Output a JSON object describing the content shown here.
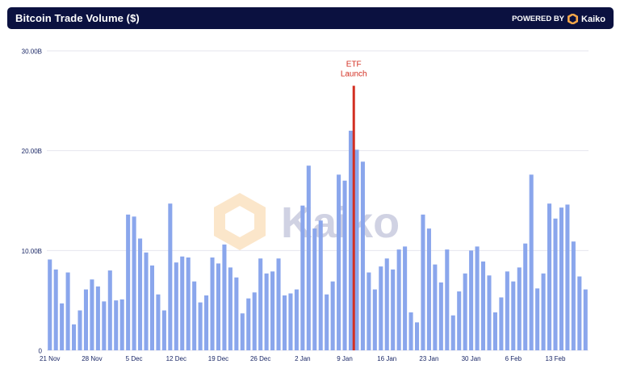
{
  "header": {
    "title": "Bitcoin Trade Volume ($)",
    "powered_by": "POWERED BY",
    "brand": "Kaiko"
  },
  "watermark": {
    "text": "Kaiko"
  },
  "colors": {
    "bar": "#8aa6ec",
    "event_line": "#d32f22",
    "header_bg": "#0b1140",
    "axis_text": "#1a2766",
    "grid": "#e6e6ee",
    "logo_orange": "#f4a64a"
  },
  "chart_data": {
    "type": "bar",
    "title": "Bitcoin Trade Volume ($)",
    "xlabel": "",
    "ylabel": "",
    "ylim": [
      0,
      30
    ],
    "y_ticks": [
      0,
      10,
      20,
      30
    ],
    "y_tick_labels": [
      "0",
      "10.00B",
      "20.00B",
      "30.00B"
    ],
    "grid": true,
    "unit": "B USD",
    "x_tick_labels": [
      "21 Nov",
      "28 Nov",
      "5 Dec",
      "12 Dec",
      "19 Dec",
      "26 Dec",
      "2 Jan",
      "9 Jan",
      "16 Jan",
      "23 Jan",
      "30 Jan",
      "6 Feb",
      "13 Feb"
    ],
    "x_tick_indices": [
      0,
      7,
      14,
      21,
      28,
      35,
      42,
      49,
      56,
      63,
      70,
      77,
      84
    ],
    "values": [
      9.1,
      8.1,
      4.7,
      7.8,
      2.6,
      4.0,
      6.1,
      7.1,
      6.4,
      4.9,
      8.0,
      5.0,
      5.1,
      13.6,
      13.4,
      11.2,
      9.8,
      8.5,
      5.6,
      4.0,
      14.7,
      8.8,
      9.4,
      9.3,
      6.9,
      4.8,
      5.5,
      9.3,
      8.7,
      10.6,
      8.3,
      7.3,
      3.7,
      5.2,
      5.8,
      9.2,
      7.7,
      7.9,
      9.2,
      5.5,
      5.7,
      6.1,
      14.5,
      18.5,
      12.2,
      13.0,
      5.6,
      6.9,
      17.6,
      17.0,
      22.0,
      20.1,
      18.9,
      7.8,
      6.1,
      8.4,
      9.2,
      8.1,
      10.1,
      10.4,
      3.8,
      2.8,
      13.6,
      12.2,
      8.6,
      6.8,
      10.1,
      3.5,
      5.9,
      7.7,
      10.0,
      10.4,
      8.9,
      7.5,
      3.8,
      5.3,
      7.9,
      6.9,
      8.3,
      10.7,
      17.6,
      6.2,
      7.7,
      14.7,
      13.2,
      14.3,
      14.6,
      10.9,
      7.4,
      6.1
    ],
    "annotations": [
      {
        "label_line1": "ETF",
        "label_line2": "Launch",
        "x_index": 50.5,
        "y_top": 26.5
      }
    ]
  }
}
